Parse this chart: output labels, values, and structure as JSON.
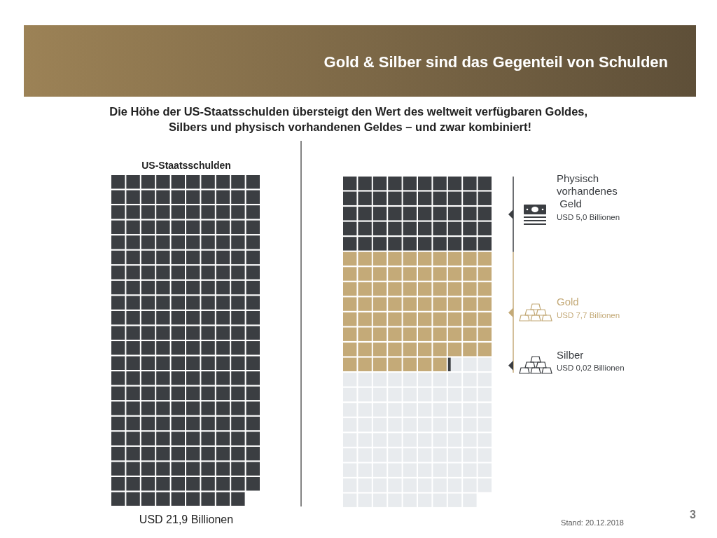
{
  "chart_data": {
    "type": "other",
    "title": "Gold & Silber sind das Gegenteil von Schulden",
    "subtitle": "Die Höhe der US-Staatsschulden übersteigt den Wert des weltweit verfügbaren Goldes, Silbers und physisch vorhandenen Geldes – und zwar kombiniert!",
    "categories": [
      "US-Staatsschulden",
      "Physisch vorhandenes Geld",
      "Gold",
      "Silber"
    ],
    "values": [
      21.9,
      5.0,
      7.7,
      0.02
    ],
    "value_labels": [
      "USD 21,9 Billionen",
      "USD 5,0 Billionen",
      "USD 7,7 Billionen",
      "USD 0,02 Billionen"
    ],
    "colors": [
      "#3b3e42",
      "#3b3e42",
      "#c4aa78",
      "#3b3e42"
    ],
    "annotations": [
      "Stand: 20.12.2018",
      "3"
    ]
  }
}
